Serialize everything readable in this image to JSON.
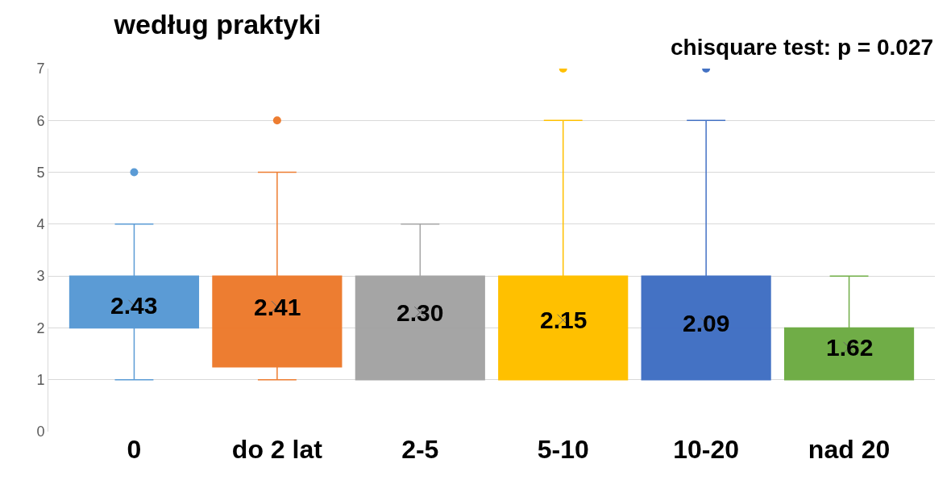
{
  "chart_data": {
    "type": "box",
    "title": "według praktyki",
    "annotations": [
      "chisquare test: p = 0.027"
    ],
    "categories": [
      "0",
      "do 2 lat",
      "2-5",
      "5-10",
      "10-20",
      "nad 20"
    ],
    "colors": [
      "#5b9bd5",
      "#ed7d31",
      "#a5a5a5",
      "#ffc000",
      "#4472c4",
      "#70ad47"
    ],
    "boxes": [
      {
        "low": 1,
        "q1": 2,
        "median": 2,
        "q3": 3,
        "high": 4,
        "mean": 2.43,
        "outliers": [
          5
        ]
      },
      {
        "low": 1,
        "q1": 1.25,
        "median": 2,
        "q3": 3,
        "high": 5,
        "mean": 2.41,
        "outliers": [
          6
        ]
      },
      {
        "low": 1,
        "q1": 1,
        "median": 2,
        "q3": 3,
        "high": 4,
        "mean": 2.3
      },
      {
        "low": 1,
        "q1": 1,
        "median": 2,
        "q3": 3,
        "high": 6,
        "mean": 2.15,
        "outliers": [
          7
        ]
      },
      {
        "low": 1,
        "q1": 1,
        "median": 2,
        "q3": 3,
        "high": 6,
        "mean": 2.09,
        "outliers": [
          7
        ]
      },
      {
        "low": 1,
        "q1": 1,
        "median": 2,
        "q3": 2,
        "high": 3,
        "mean": 1.62
      }
    ],
    "value_labels": [
      "2.43",
      "2.41",
      "2.30",
      "2.15",
      "2.09",
      "1.62"
    ],
    "ylim": [
      0,
      7
    ],
    "yticks": [
      0,
      1,
      2,
      3,
      4,
      5,
      6,
      7
    ],
    "grid": "y"
  }
}
